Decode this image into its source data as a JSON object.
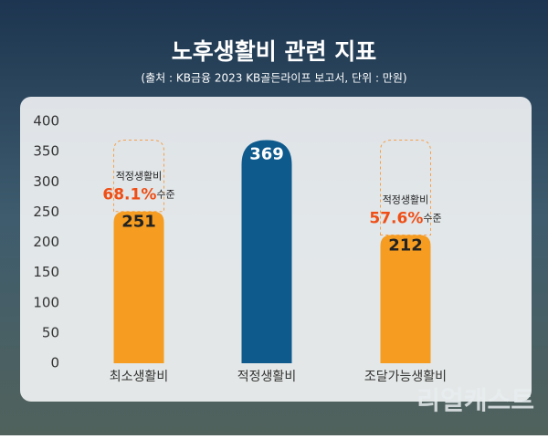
{
  "chart_data": {
    "type": "bar",
    "title": "노후생활비 관련 지표",
    "subtitle": "(출처 : KB금융 2023 KB골든라이프 보고서, 단위 : 만원)",
    "categories": [
      "최소생활비",
      "적정생활비",
      "조달가능생활비"
    ],
    "values": [
      251,
      369,
      212
    ],
    "colors": [
      "#f59c21",
      "#0f5a8c",
      "#f59c21"
    ],
    "ylim": [
      0,
      400
    ],
    "yticks": [
      0,
      50,
      100,
      150,
      200,
      250,
      300,
      350,
      400
    ],
    "annotations": [
      {
        "category": 0,
        "text": "적정생활비",
        "share": "68.1%",
        "suffix": "수준"
      },
      {
        "category": 2,
        "text": "적정생활비",
        "share": "57.6%",
        "suffix": "수준"
      }
    ],
    "watermark": "리얼캐스트"
  }
}
